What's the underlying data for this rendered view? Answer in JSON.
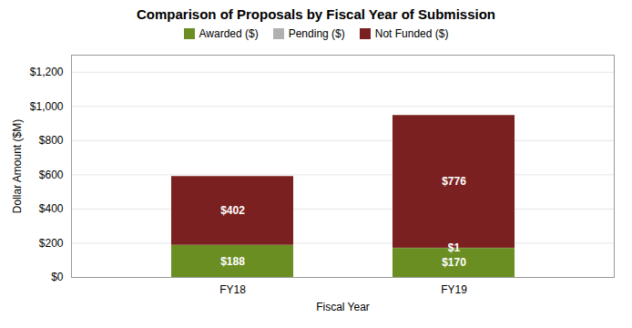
{
  "chart_data": {
    "type": "bar",
    "stacked": true,
    "title": "Comparison of Proposals by Fiscal Year of Submission",
    "xlabel": "Fiscal Year",
    "ylabel": "Dollar Amount ($M)",
    "categories": [
      "FY18",
      "FY19"
    ],
    "series": [
      {
        "name": "Awarded ($)",
        "color": "#6b8e23",
        "values": [
          188,
          170
        ],
        "value_labels": [
          "$188",
          "$170"
        ]
      },
      {
        "name": "Pending ($)",
        "color": "#b0b0b0",
        "values": [
          0,
          1
        ],
        "value_labels": [
          null,
          "$1"
        ]
      },
      {
        "name": "Not Funded ($)",
        "color": "#7b2020",
        "values": [
          402,
          776
        ],
        "value_labels": [
          "$402",
          "$776"
        ]
      }
    ],
    "ylim": [
      0,
      1300
    ],
    "yticks": [
      {
        "value": 0,
        "label": "$0"
      },
      {
        "value": 200,
        "label": "$200"
      },
      {
        "value": 400,
        "label": "$400"
      },
      {
        "value": 600,
        "label": "$600"
      },
      {
        "value": 800,
        "label": "$800"
      },
      {
        "value": 1000,
        "label": "$1,000"
      },
      {
        "value": 1200,
        "label": "$1,200"
      }
    ],
    "grid": true,
    "legend": "top",
    "data_labels": true
  }
}
